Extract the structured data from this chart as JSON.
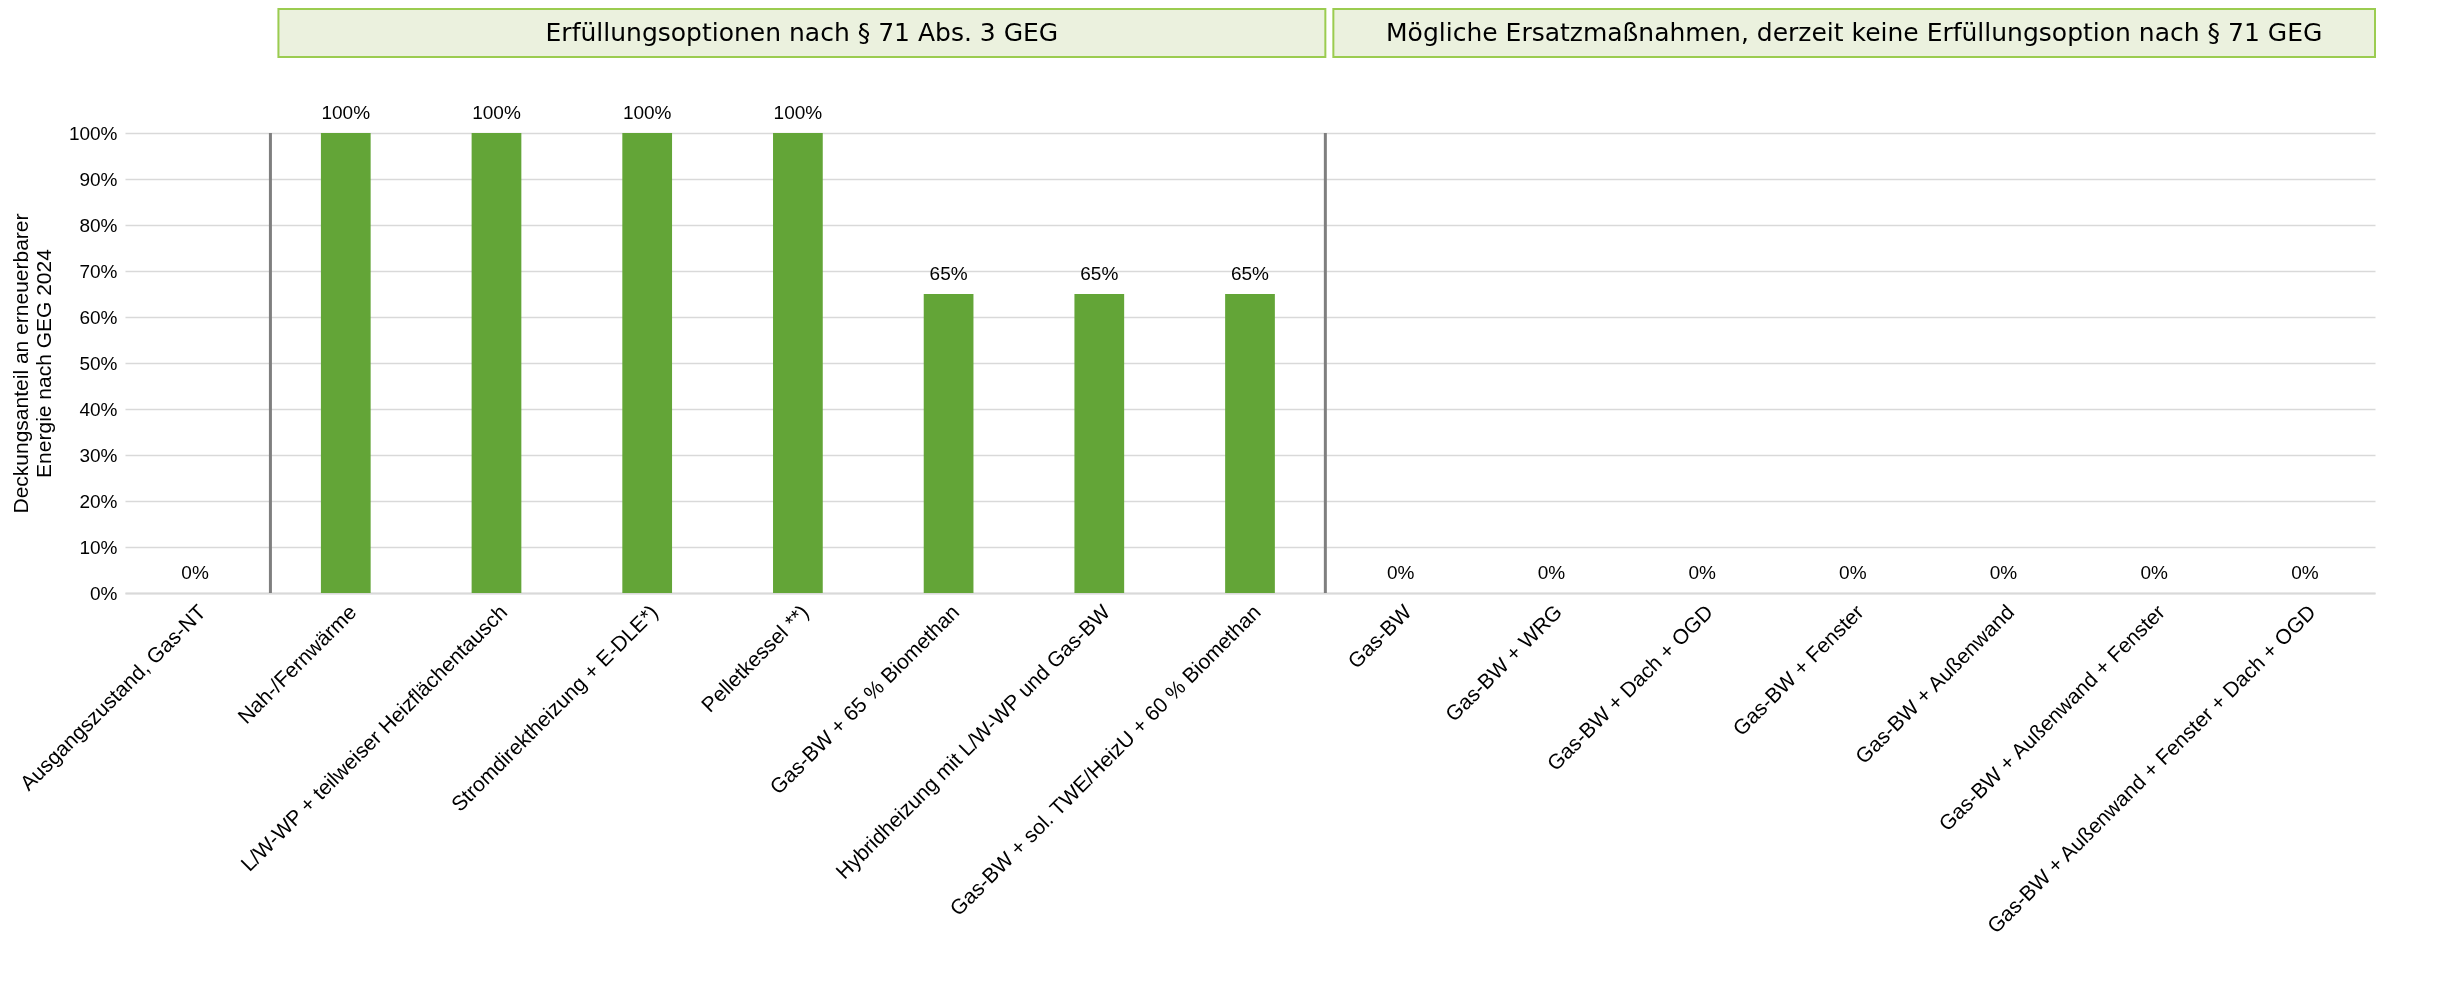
{
  "chart_data": {
    "type": "bar",
    "ylabel": "Deckungsanteil an erneuerbarer Energie nach GEG 2024",
    "categories": [
      "Ausgangszustand, Gas-NT",
      "Nah-/Fernwärme",
      "L/W-WP + teilweiser Heizflächentausch",
      "Stromdirektheizung + E-DLE*)",
      "Pelletkessel **)",
      "Gas-BW + 65 % Biomethan",
      "Hybridheizung mit L/W-WP und Gas-BW",
      "Gas-BW + sol. TWE/HeizU + 60 % Biomethan",
      "Gas-BW",
      "Gas-BW + WRG",
      "Gas-BW + Dach + OGD",
      "Gas-BW + Fenster",
      "Gas-BW + Außenwand",
      "Gas-BW + Außenwand + Fenster",
      "Gas-BW + Außenwand + Fenster + Dach + OGD"
    ],
    "values": [
      0,
      100,
      100,
      100,
      100,
      65,
      65,
      65,
      0,
      0,
      0,
      0,
      0,
      0,
      0
    ],
    "value_labels": [
      "0%",
      "100%",
      "100%",
      "100%",
      "100%",
      "65%",
      "65%",
      "65%",
      "0%",
      "0%",
      "0%",
      "0%",
      "0%",
      "0%",
      "0%"
    ],
    "color": "#63a537",
    "ylim": [
      0,
      100
    ],
    "yticks": [
      {
        "value": 0,
        "label": "0%"
      },
      {
        "value": 10,
        "label": "10%"
      },
      {
        "value": 20,
        "label": "20%"
      },
      {
        "value": 30,
        "label": "30%"
      },
      {
        "value": 40,
        "label": "40%"
      },
      {
        "value": 50,
        "label": "50%"
      },
      {
        "value": 60,
        "label": "60%"
      },
      {
        "value": 70,
        "label": "70%"
      },
      {
        "value": 80,
        "label": "80%"
      },
      {
        "value": 90,
        "label": "90%"
      },
      {
        "value": 100,
        "label": "100%"
      }
    ],
    "grid": "y",
    "annotations": [
      "Erfüllungsoptionen nach § 71 Abs. 3 GEG",
      "Mögliche Ersatzmaßnahmen, derzeit keine Erfüllungsoption nach § 71 GEG"
    ]
  }
}
